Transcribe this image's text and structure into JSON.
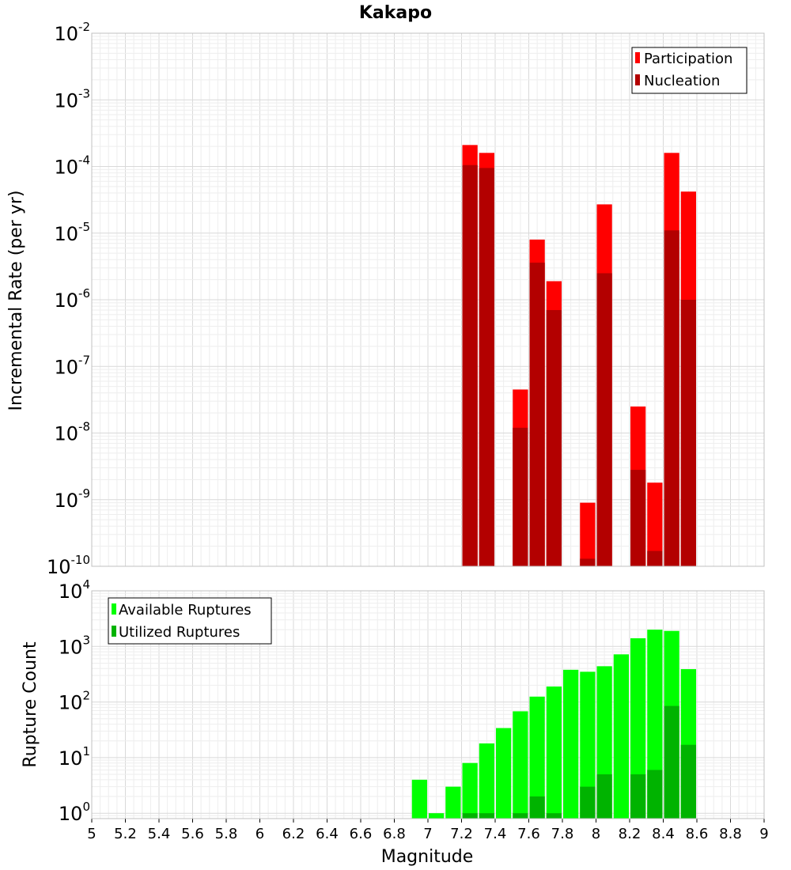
{
  "chart_data": [
    {
      "type": "bar",
      "title": "Kakapo",
      "xlabel": "",
      "ylabel": "Incremental Rate (per yr)",
      "yscale": "log",
      "xlim": [
        5,
        9
      ],
      "ylim": [
        1e-10,
        0.01
      ],
      "grid": true,
      "legend_position": "top-right",
      "bar_width": 0.1,
      "series": [
        {
          "name": "Participation",
          "color": "#ff0000",
          "points": [
            {
              "x": 7.25,
              "y": 0.00021
            },
            {
              "x": 7.35,
              "y": 0.00016
            },
            {
              "x": 7.55,
              "y": 4.5e-08
            },
            {
              "x": 7.65,
              "y": 8e-06
            },
            {
              "x": 7.75,
              "y": 1.9e-06
            },
            {
              "x": 7.95,
              "y": 9e-10
            },
            {
              "x": 8.05,
              "y": 2.7e-05
            },
            {
              "x": 8.25,
              "y": 2.5e-08
            },
            {
              "x": 8.35,
              "y": 1.8e-09
            },
            {
              "x": 8.45,
              "y": 0.00016
            },
            {
              "x": 8.55,
              "y": 4.2e-05
            }
          ]
        },
        {
          "name": "Nucleation",
          "color": "#b30000",
          "points": [
            {
              "x": 7.25,
              "y": 0.000105
            },
            {
              "x": 7.35,
              "y": 9.5e-05
            },
            {
              "x": 7.55,
              "y": 1.2e-08
            },
            {
              "x": 7.65,
              "y": 3.6e-06
            },
            {
              "x": 7.75,
              "y": 7e-07
            },
            {
              "x": 7.95,
              "y": 1.3e-10
            },
            {
              "x": 8.05,
              "y": 2.5e-06
            },
            {
              "x": 8.25,
              "y": 2.8e-09
            },
            {
              "x": 8.35,
              "y": 1.7e-10
            },
            {
              "x": 8.45,
              "y": 1.1e-05
            },
            {
              "x": 8.55,
              "y": 1e-06
            }
          ]
        }
      ],
      "y_ticks": [
        {
          "base": "10",
          "exp": "-10",
          "value": 1e-10
        },
        {
          "base": "10",
          "exp": "-9",
          "value": 1e-09
        },
        {
          "base": "10",
          "exp": "-8",
          "value": 1e-08
        },
        {
          "base": "10",
          "exp": "-7",
          "value": 1e-07
        },
        {
          "base": "10",
          "exp": "-6",
          "value": 1e-06
        },
        {
          "base": "10",
          "exp": "-5",
          "value": 1e-05
        },
        {
          "base": "10",
          "exp": "-4",
          "value": 0.0001
        },
        {
          "base": "10",
          "exp": "-3",
          "value": 0.001
        },
        {
          "base": "10",
          "exp": "-2",
          "value": 0.01
        }
      ]
    },
    {
      "type": "bar",
      "title": "",
      "xlabel": "Magnitude",
      "ylabel": "Rupture Count",
      "yscale": "log",
      "xlim": [
        5,
        9
      ],
      "ylim": [
        0.8,
        10000
      ],
      "grid": true,
      "legend_position": "top-left",
      "bar_width": 0.1,
      "series": [
        {
          "name": "Available Ruptures",
          "color": "#00ff00",
          "points": [
            {
              "x": 6.95,
              "y": 4
            },
            {
              "x": 7.05,
              "y": 1
            },
            {
              "x": 7.15,
              "y": 3
            },
            {
              "x": 7.25,
              "y": 8
            },
            {
              "x": 7.35,
              "y": 18
            },
            {
              "x": 7.45,
              "y": 34
            },
            {
              "x": 7.55,
              "y": 68
            },
            {
              "x": 7.65,
              "y": 125
            },
            {
              "x": 7.75,
              "y": 190
            },
            {
              "x": 7.85,
              "y": 380
            },
            {
              "x": 7.95,
              "y": 350
            },
            {
              "x": 8.05,
              "y": 440
            },
            {
              "x": 8.15,
              "y": 720
            },
            {
              "x": 8.25,
              "y": 1400
            },
            {
              "x": 8.35,
              "y": 2000
            },
            {
              "x": 8.45,
              "y": 1900
            },
            {
              "x": 8.55,
              "y": 390
            }
          ]
        },
        {
          "name": "Utilized Ruptures",
          "color": "#00b300",
          "points": [
            {
              "x": 7.25,
              "y": 1
            },
            {
              "x": 7.35,
              "y": 1
            },
            {
              "x": 7.55,
              "y": 1
            },
            {
              "x": 7.65,
              "y": 2
            },
            {
              "x": 7.75,
              "y": 1
            },
            {
              "x": 7.95,
              "y": 3
            },
            {
              "x": 8.05,
              "y": 5
            },
            {
              "x": 8.25,
              "y": 5
            },
            {
              "x": 8.35,
              "y": 6
            },
            {
              "x": 8.45,
              "y": 85
            },
            {
              "x": 8.55,
              "y": 17
            }
          ]
        }
      ],
      "y_ticks": [
        {
          "base": "10",
          "exp": "0",
          "value": 1
        },
        {
          "base": "10",
          "exp": "1",
          "value": 10
        },
        {
          "base": "10",
          "exp": "2",
          "value": 100
        },
        {
          "base": "10",
          "exp": "3",
          "value": 1000
        },
        {
          "base": "10",
          "exp": "4",
          "value": 10000
        }
      ],
      "x_ticks": [
        {
          "label": "5",
          "value": 5.0
        },
        {
          "label": "5.2",
          "value": 5.2
        },
        {
          "label": "5.4",
          "value": 5.4
        },
        {
          "label": "5.6",
          "value": 5.6
        },
        {
          "label": "5.8",
          "value": 5.8
        },
        {
          "label": "6",
          "value": 6.0
        },
        {
          "label": "6.2",
          "value": 6.2
        },
        {
          "label": "6.4",
          "value": 6.4
        },
        {
          "label": "6.6",
          "value": 6.6
        },
        {
          "label": "6.8",
          "value": 6.8
        },
        {
          "label": "7",
          "value": 7.0
        },
        {
          "label": "7.2",
          "value": 7.2
        },
        {
          "label": "7.4",
          "value": 7.4
        },
        {
          "label": "7.6",
          "value": 7.6
        },
        {
          "label": "7.8",
          "value": 7.8
        },
        {
          "label": "8",
          "value": 8.0
        },
        {
          "label": "8.2",
          "value": 8.2
        },
        {
          "label": "8.4",
          "value": 8.4
        },
        {
          "label": "8.6",
          "value": 8.6
        },
        {
          "label": "8.8",
          "value": 8.8
        },
        {
          "label": "9",
          "value": 9.0
        }
      ]
    }
  ]
}
